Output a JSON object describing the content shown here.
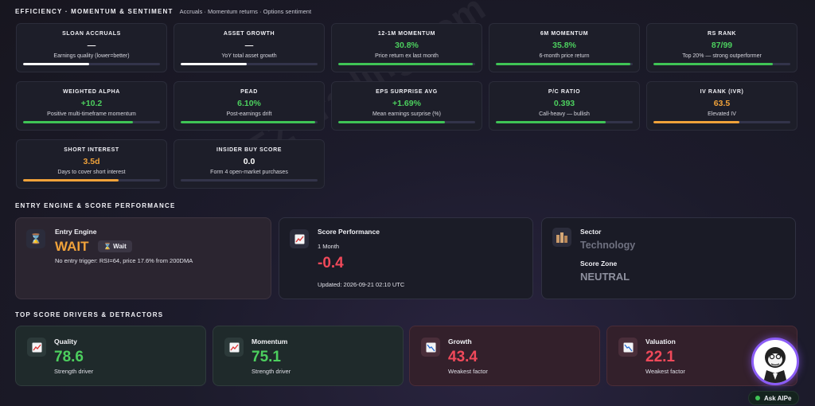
{
  "efficiency": {
    "title": "EFFICIENCY · MOMENTUM & SENTIMENT",
    "subtitle": "Accruals · Momentum returns · Options sentiment",
    "cards": [
      {
        "label": "SLOAN ACCRUALS",
        "value": "—",
        "desc": "Earnings quality (lower=better)",
        "color": "#ffffff",
        "bar_color": "#ffffff",
        "level": 0.48
      },
      {
        "label": "ASSET GROWTH",
        "value": "—",
        "desc": "YoY total asset growth",
        "color": "#ffffff",
        "bar_color": "#ffffff",
        "level": 0.48
      },
      {
        "label": "12-1M MOMENTUM",
        "value": "30.8%",
        "desc": "Price return ex last month",
        "color": "#4ccf5e",
        "bar_color": "#3fc455",
        "level": 0.98
      },
      {
        "label": "6M MOMENTUM",
        "value": "35.8%",
        "desc": "6-month price return",
        "color": "#4ccf5e",
        "bar_color": "#3fc455",
        "level": 0.98
      },
      {
        "label": "RS RANK",
        "value": "87/99",
        "desc": "Top 20% — strong outperformer",
        "color": "#4ccf5e",
        "bar_color": "#3fc455",
        "level": 0.87
      },
      {
        "label": "WEIGHTED ALPHA",
        "value": "+10.2",
        "desc": "Positive multi-timeframe momentum",
        "color": "#4ccf5e",
        "bar_color": "#3fc455",
        "level": 0.8
      },
      {
        "label": "PEAD",
        "value": "6.10%",
        "desc": "Post-earnings drift",
        "color": "#4ccf5e",
        "bar_color": "#3fc455",
        "level": 0.98
      },
      {
        "label": "EPS SURPRISE AVG",
        "value": "+1.69%",
        "desc": "Mean earnings surprise (%)",
        "color": "#4ccf5e",
        "bar_color": "#3fc455",
        "level": 0.78
      },
      {
        "label": "P/C RATIO",
        "value": "0.393",
        "desc": "Call-heavy — bullish",
        "color": "#4ccf5e",
        "bar_color": "#3fc455",
        "level": 0.8
      },
      {
        "label": "IV RANK (IVR)",
        "value": "63.5",
        "desc": "Elevated IV",
        "color": "#f0a23a",
        "bar_color": "#f0a23a",
        "level": 0.63
      },
      {
        "label": "SHORT INTEREST",
        "value": "3.5d",
        "desc": "Days to cover short interest",
        "color": "#f0a23a",
        "bar_color": "#f0a23a",
        "level": 0.7
      },
      {
        "label": "INSIDER BUY SCORE",
        "value": "0.0",
        "desc": "Form 4 open-market purchases",
        "color": "#ffffff",
        "bar_color": "#4a4b60",
        "level": 0.0
      }
    ]
  },
  "entry": {
    "title": "ENTRY ENGINE & SCORE PERFORMANCE",
    "engine_label": "Entry Engine",
    "engine_value": "WAIT",
    "engine_value_color": "#f0a23a",
    "badge": "⌛ Wait",
    "engine_note": "No entry trigger: RSI=64, price 17.6% from 200DMA",
    "engine_icon": "hourglass-icon",
    "perf_label": "Score Performance",
    "perf_period": "1 Month",
    "perf_value": "-0.4",
    "perf_color": "#f0495a",
    "perf_updated": "Updated: 2026-09-21 02:10 UTC",
    "perf_icon": "chart-up-icon",
    "sector_label": "Sector",
    "sector_value": "Technology",
    "zone_label": "Score Zone",
    "zone_value": "NEUTRAL",
    "sector_icon": "building-icon"
  },
  "drivers": {
    "title": "TOP SCORE DRIVERS & DETRACTORS",
    "items": [
      {
        "label": "Quality",
        "value": "78.6",
        "desc": "Strength driver",
        "color": "#4ccf5e",
        "kind": "pos",
        "icon": "chart-up-icon"
      },
      {
        "label": "Momentum",
        "value": "75.1",
        "desc": "Strength driver",
        "color": "#4ccf5e",
        "kind": "pos",
        "icon": "chart-up-icon"
      },
      {
        "label": "Growth",
        "value": "43.4",
        "desc": "Weakest factor",
        "color": "#f0495a",
        "kind": "neg",
        "icon": "chart-down-icon"
      },
      {
        "label": "Valuation",
        "value": "22.1",
        "desc": "Weakest factor",
        "color": "#f0495a",
        "kind": "neg",
        "icon": "chart-down-icon"
      }
    ]
  },
  "assistant": {
    "button_label": "Ask AIPe",
    "avatar_icon": "monkey-avatar-icon"
  },
  "watermark": "EZ Trading.com"
}
